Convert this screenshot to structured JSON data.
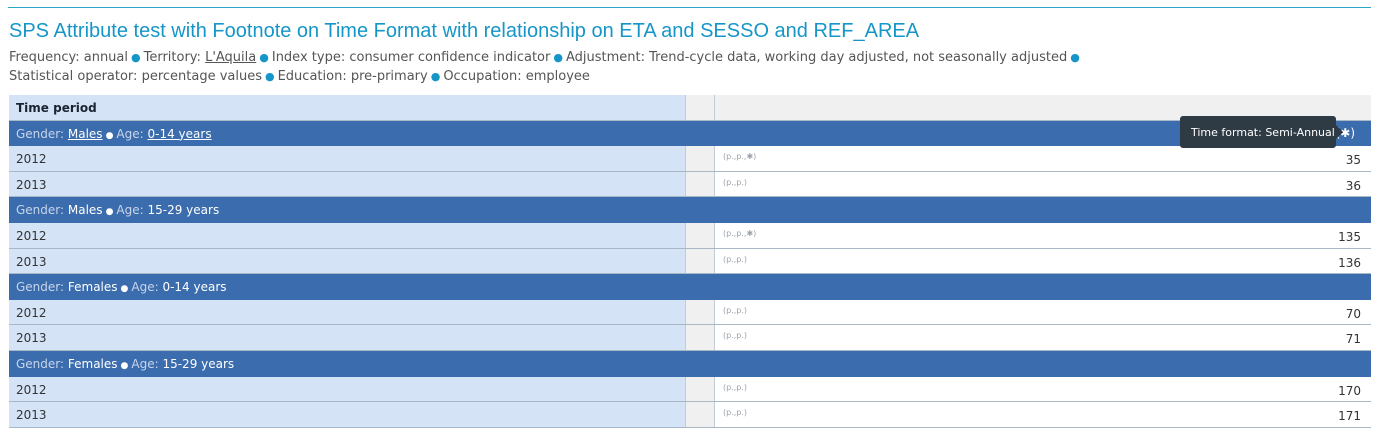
{
  "title": "SPS Attribute test with Footnote on Time Format with relationship on ETA and SESSO and REF_AREA",
  "subtitle_line1": [
    {
      "key": "Frequency: ",
      "value": "annual"
    },
    {
      "key": "Territory: ",
      "value": "L'Aquila"
    },
    {
      "key": "Index type: ",
      "value": "consumer confidence indicator"
    },
    {
      "key": "Adjustment: ",
      "value": "Trend-cycle data, working day adjusted, not seasonally adjusted"
    }
  ],
  "subtitle_line2": [
    {
      "key": "Statistical operator: ",
      "value": "percentage values"
    },
    {
      "key": "Education: ",
      "value": "pre-primary"
    },
    {
      "key": "Occupation: ",
      "value": "employee"
    }
  ],
  "table": {
    "header_label": "Time period",
    "groups": [
      {
        "gender_key": "Gender: ",
        "gender": "Males",
        "age_key": "Age: ",
        "age": "0-14 years",
        "star": "(✱)",
        "rows": [
          {
            "year": "2012",
            "flag": "(p.,p.,✱)",
            "value": "35"
          },
          {
            "year": "2013",
            "flag": "(p.,p.)",
            "value": "36"
          }
        ]
      },
      {
        "gender_key": "Gender: ",
        "gender": "Males",
        "age_key": "Age: ",
        "age": "15-29 years",
        "rows": [
          {
            "year": "2012",
            "flag": "(p.,p.,✱)",
            "value": "135"
          },
          {
            "year": "2013",
            "flag": "(p.,p.)",
            "value": "136"
          }
        ]
      },
      {
        "gender_key": "Gender: ",
        "gender": "Females",
        "age_key": "Age: ",
        "age": "0-14 years",
        "rows": [
          {
            "year": "2012",
            "flag": "(p.,p.)",
            "value": "70"
          },
          {
            "year": "2013",
            "flag": "(p.,p.)",
            "value": "71"
          }
        ]
      },
      {
        "gender_key": "Gender: ",
        "gender": "Females",
        "age_key": "Age: ",
        "age": "15-29 years",
        "rows": [
          {
            "year": "2012",
            "flag": "(p.,p.)",
            "value": "170"
          },
          {
            "year": "2013",
            "flag": "(p.,p.)",
            "value": "171"
          }
        ]
      }
    ]
  },
  "tooltip": "Time format: Semi-Annual"
}
